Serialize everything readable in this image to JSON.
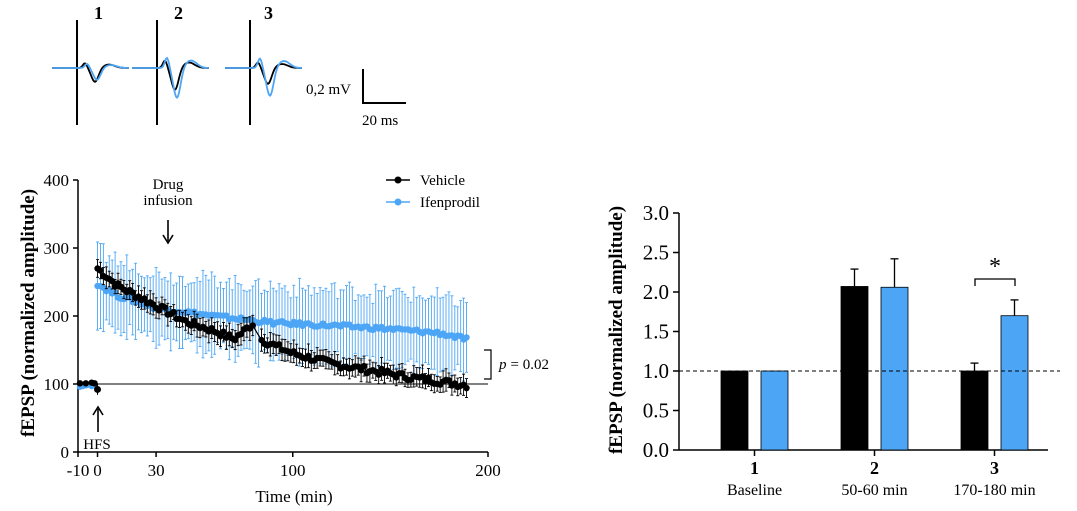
{
  "colors": {
    "vehicle": "#000000",
    "ifenprodil": "#4da6f5"
  },
  "traces": {
    "labels": [
      "1",
      "2",
      "3"
    ],
    "scale_amplitude": "0,2 mV",
    "scale_time": "20 ms"
  },
  "chart_data": [
    {
      "type": "line",
      "ylabel": "fEPSP (normalized amplitude)",
      "xlabel": "Time (min)",
      "xlim": [
        -10,
        200
      ],
      "ylim": [
        0,
        400
      ],
      "x_ticks": [
        "-10",
        "0",
        "30",
        "100",
        "200"
      ],
      "y_ticks": [
        "0",
        "100",
        "200",
        "300",
        "400"
      ],
      "legend_position": "top-right",
      "baseline": 100,
      "annotations": {
        "drug_infusion": "Drug\ninfusion",
        "drug_infusion_time": 30,
        "hfs": "HFS",
        "hfs_time": 0,
        "p_value_label": "p",
        "p_value_text": "= 0.02"
      },
      "series": [
        {
          "name": "Vehicle",
          "color": "#000000",
          "baseline_x": [
            -9,
            -6,
            -3,
            -1.5
          ],
          "baseline_y": [
            101,
            101,
            102,
            101
          ],
          "hfs_point": {
            "x": 0,
            "y": 92,
            "err": 8
          },
          "start": 0,
          "end": 190,
          "step": 1.5,
          "gap": [
            80,
            83
          ],
          "knots": [
            [
              0,
              270
            ],
            [
              10,
              245
            ],
            [
              30,
              215
            ],
            [
              45,
              192
            ],
            [
              60,
              178
            ],
            [
              70,
              166
            ],
            [
              80,
              190
            ],
            [
              84,
              165
            ],
            [
              100,
              145
            ],
            [
              120,
              130
            ],
            [
              140,
              120
            ],
            [
              160,
              110
            ],
            [
              175,
              104
            ],
            [
              190,
              98
            ]
          ],
          "error": 14
        },
        {
          "name": "Ifenprodil",
          "color": "#4da6f5",
          "baseline_x": [
            -9,
            -7.5,
            -6,
            -4.5,
            -3,
            -1.5
          ],
          "baseline_y": [
            96,
            97,
            98,
            99,
            97,
            98
          ],
          "start": 0,
          "end": 190,
          "step": 1.5,
          "knots": [
            [
              0,
              247
            ],
            [
              10,
              230
            ],
            [
              30,
              212
            ],
            [
              60,
              200
            ],
            [
              90,
              190
            ],
            [
              120,
              186
            ],
            [
              150,
              181
            ],
            [
              175,
              175
            ],
            [
              190,
              165
            ]
          ],
          "error": 52
        }
      ]
    },
    {
      "type": "bar",
      "ylabel": "fEPSP (normalized amplitude)",
      "ylim": [
        0,
        3
      ],
      "y_ticks": [
        "0.0",
        "0.5",
        "1.0",
        "1.5",
        "2.0",
        "2.5",
        "3.0"
      ],
      "baseline": 1.0,
      "categories": [
        {
          "num": "1",
          "label": "Baseline"
        },
        {
          "num": "2",
          "label": "50-60 min"
        },
        {
          "num": "3",
          "label": "170-180 min"
        }
      ],
      "series": [
        {
          "name": "Vehicle",
          "color": "#000000",
          "values": [
            1.0,
            2.07,
            1.0
          ],
          "errors": [
            0,
            0.22,
            0.1
          ]
        },
        {
          "name": "Ifenprodil",
          "color": "#4da6f5",
          "values": [
            1.0,
            2.06,
            1.7
          ],
          "errors": [
            0,
            0.36,
            0.2
          ]
        }
      ],
      "significance": "*"
    }
  ]
}
